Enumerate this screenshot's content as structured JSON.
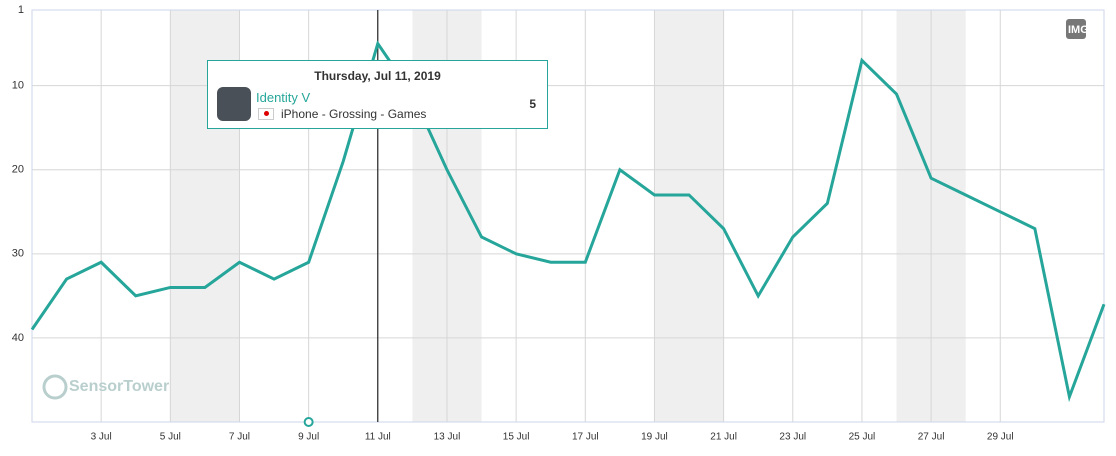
{
  "chart_data": {
    "type": "line",
    "categories": [
      null,
      null,
      "3 Jul",
      null,
      "5 Jul",
      null,
      "7 Jul",
      null,
      "9 Jul",
      null,
      "11 Jul",
      null,
      "13 Jul",
      null,
      "15 Jul",
      null,
      "17 Jul",
      null,
      "19 Jul",
      null,
      "21 Jul",
      null,
      "23 Jul",
      null,
      "25 Jul",
      null,
      "27 Jul",
      null,
      "29 Jul",
      null,
      null,
      null
    ],
    "series": [
      {
        "name": "Identity V",
        "color": "#26a69a",
        "values": [
          39,
          33,
          31,
          35,
          34,
          34,
          31,
          33,
          31,
          19,
          5,
          11,
          20,
          28,
          30,
          31,
          31,
          20,
          23,
          23,
          27,
          35,
          28,
          24,
          7,
          11,
          21,
          23,
          25,
          27,
          47,
          36
        ]
      }
    ],
    "ylim": [
      1,
      50
    ],
    "yticks": [
      1,
      10,
      20,
      30,
      40
    ],
    "y_inverted": true,
    "grid": true
  },
  "tooltip": {
    "date": "Thursday, Jul 11, 2019",
    "subtitle": "iPhone - Grossing - Games"
  },
  "watermark": "SensorTower",
  "button": "IMG"
}
